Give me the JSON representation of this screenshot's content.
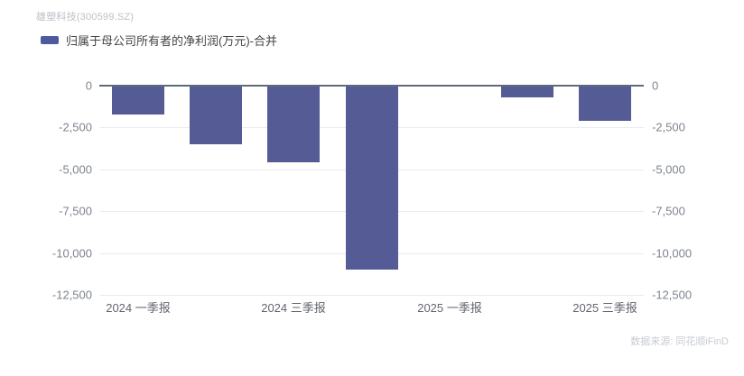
{
  "header": {
    "title": "雄塑科技(300599.SZ)"
  },
  "legend": {
    "label": "归属于母公司所有者的净利润(万元)-合并"
  },
  "footer": {
    "source": "数据来源: 同花顺iFinD"
  },
  "colors": {
    "bar": "#545B95",
    "legend_swatch": "#4D5A9C",
    "zero_line": "#5E6B7D",
    "gridline": "#E9EBEE",
    "y_label": "#7E848E",
    "x_label": "#62666E",
    "title": "#BCC0C8",
    "source": "#C7CBD2"
  },
  "chart_data": {
    "type": "bar",
    "title": "雄塑科技(300599.SZ)",
    "series": [
      {
        "name": "归属于母公司所有者的净利润(万元)-合并",
        "values": [
          -1700,
          -3500,
          -4600,
          -11000,
          0,
          -700,
          -2100
        ]
      }
    ],
    "x_tick_labels": [
      "2024 一季报",
      "",
      "2024 三季报",
      "",
      "2025 一季报",
      "",
      "2025 三季报"
    ],
    "y_ticks": [
      0,
      -2500,
      -5000,
      -7500,
      -10000,
      -12500
    ],
    "y_tick_labels": [
      "0",
      "-2,500",
      "-5,000",
      "-7,500",
      "-10,000",
      "-12,500"
    ],
    "ylim": [
      -12500,
      0
    ],
    "grid": true,
    "legend_position": "top-left",
    "y_axis_sides": "both"
  }
}
